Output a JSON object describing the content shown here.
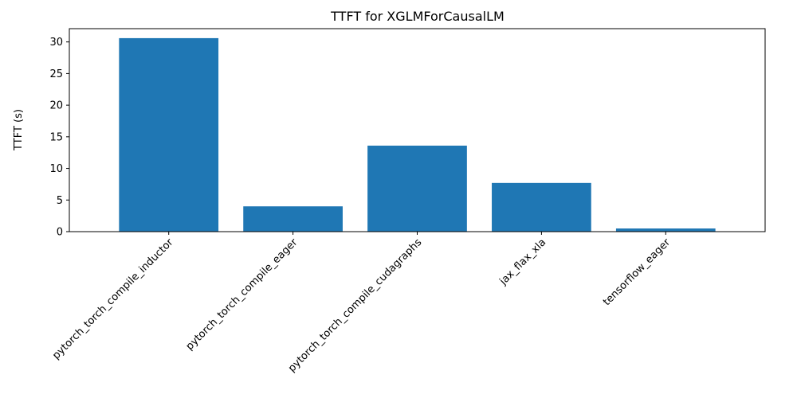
{
  "chart_data": {
    "type": "bar",
    "title": "TTFT for XGLMForCausalLM",
    "xlabel": "",
    "ylabel": "TTFT (s)",
    "categories": [
      "pytorch_torch_compile_inductor",
      "pytorch_torch_compile_eager",
      "pytorch_torch_compile_cudagraphs",
      "jax_flax_xla",
      "tensorflow_eager"
    ],
    "values": [
      30.6,
      4.0,
      13.6,
      7.7,
      0.5
    ],
    "ylim": [
      0,
      32.1
    ],
    "yticks": [
      0,
      5,
      10,
      15,
      20,
      25,
      30
    ],
    "grid": false,
    "bar_color": "#1f77b4"
  }
}
